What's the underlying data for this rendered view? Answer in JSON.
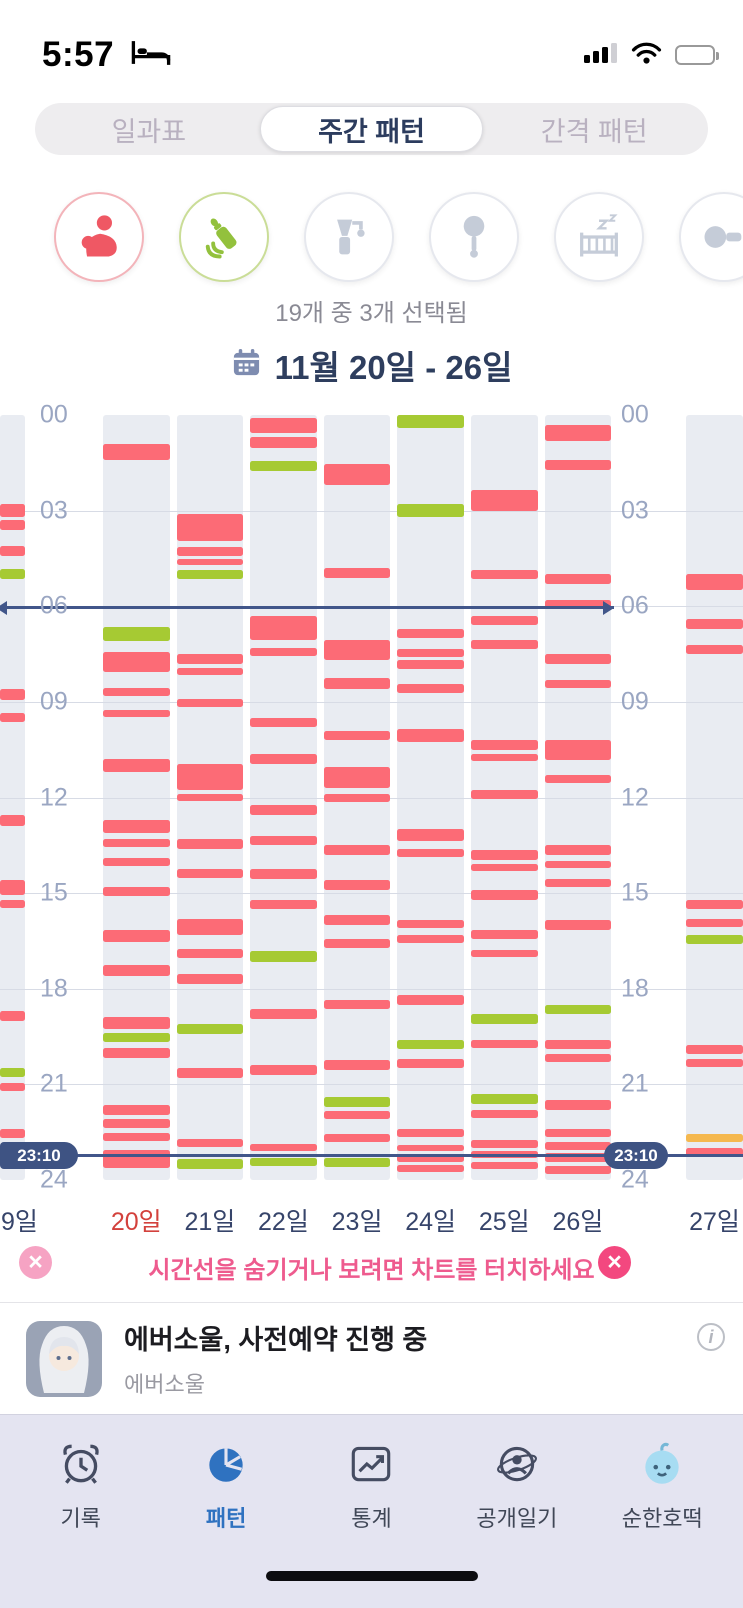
{
  "status_bar": {
    "time": "5:57"
  },
  "segmented_tabs": {
    "items": [
      {
        "label": "일과표",
        "selected": false
      },
      {
        "label": "주간 패턴",
        "selected": true
      },
      {
        "label": "간격 패턴",
        "selected": false
      }
    ]
  },
  "activity_filter": {
    "selection_summary": "19개 중 3개 선택됨",
    "icons": [
      {
        "name": "breastfeeding",
        "selected": true,
        "color": "#ef5864",
        "ring": "#f3b4ba"
      },
      {
        "name": "bottle-feeding",
        "selected": true,
        "color": "#93c13d",
        "ring": "#cadd97"
      },
      {
        "name": "breast-pump",
        "selected": false,
        "color": "#c5ccd8",
        "ring": "#e6e8ee"
      },
      {
        "name": "rattle",
        "selected": false,
        "color": "#c5ccd8",
        "ring": "#e6e8ee"
      },
      {
        "name": "sleep-crib",
        "selected": false,
        "color": "#c5ccd8",
        "ring": "#e6e8ee"
      },
      {
        "name": "more",
        "selected": false,
        "color": "#c5ccd8",
        "ring": "#e6e8ee"
      }
    ]
  },
  "date_header": {
    "label": "11월 20일 - 26일"
  },
  "chart_data": {
    "type": "weekly-timeline",
    "y_axis": {
      "unit": "hour",
      "range": [
        0,
        24
      ],
      "ticks": [
        "00",
        "03",
        "06",
        "09",
        "12",
        "15",
        "18",
        "21",
        "24"
      ]
    },
    "colors": {
      "p": "#fc6b76",
      "g": "#a6ca33",
      "o": "#f5b84f"
    },
    "palette": {
      "column_bg": "#e9ecf2",
      "timeline": "#3e5383",
      "accent_red": "#d3413c",
      "label_navy": "#36446a",
      "hint_pink": "#ee5b8e",
      "nav_selected": "#2f72c0"
    },
    "timelines": [
      {
        "hour": 6.0,
        "style": "arrows",
        "label": ""
      },
      {
        "hour": 23.17,
        "style": "labels",
        "label": "23:10"
      }
    ],
    "days": [
      {
        "label": "19일",
        "edge": "left",
        "highlight": false,
        "bars": [
          [
            2.8,
            3.2,
            "p"
          ],
          [
            3.3,
            3.62,
            "p"
          ],
          [
            4.1,
            4.42,
            "p"
          ],
          [
            4.82,
            5.15,
            "g"
          ],
          [
            8.6,
            8.95,
            "p"
          ],
          [
            9.35,
            9.62,
            "p"
          ],
          [
            12.55,
            12.9,
            "p"
          ],
          [
            14.6,
            15.05,
            "p"
          ],
          [
            15.2,
            15.48,
            "p"
          ],
          [
            18.7,
            19.0,
            "p"
          ],
          [
            20.5,
            20.78,
            "g"
          ],
          [
            20.95,
            21.22,
            "p"
          ],
          [
            22.4,
            22.68,
            "p"
          ]
        ]
      },
      {
        "label": "20일",
        "highlight": true,
        "bars": [
          [
            0.9,
            1.42,
            "p"
          ],
          [
            6.65,
            7.1,
            "g"
          ],
          [
            7.45,
            8.05,
            "p"
          ],
          [
            8.55,
            8.82,
            "p"
          ],
          [
            9.25,
            9.48,
            "p"
          ],
          [
            10.8,
            11.2,
            "p"
          ],
          [
            12.7,
            13.1,
            "p"
          ],
          [
            13.3,
            13.55,
            "p"
          ],
          [
            13.9,
            14.16,
            "p"
          ],
          [
            14.8,
            15.1,
            "p"
          ],
          [
            16.15,
            16.52,
            "p"
          ],
          [
            17.25,
            17.6,
            "p"
          ],
          [
            18.9,
            19.25,
            "p"
          ],
          [
            19.38,
            19.66,
            "g"
          ],
          [
            19.85,
            20.16,
            "p"
          ],
          [
            21.65,
            21.95,
            "p"
          ],
          [
            22.1,
            22.36,
            "p"
          ],
          [
            22.52,
            22.78,
            "p"
          ],
          [
            23.05,
            23.62,
            "p"
          ]
        ]
      },
      {
        "label": "21일",
        "highlight": false,
        "bars": [
          [
            3.1,
            3.95,
            "p"
          ],
          [
            4.15,
            4.42,
            "p"
          ],
          [
            4.52,
            4.72,
            "p"
          ],
          [
            4.85,
            5.15,
            "g"
          ],
          [
            7.5,
            7.82,
            "p"
          ],
          [
            7.95,
            8.15,
            "p"
          ],
          [
            8.9,
            9.15,
            "p"
          ],
          [
            10.95,
            11.75,
            "p"
          ],
          [
            11.9,
            12.12,
            "p"
          ],
          [
            13.3,
            13.6,
            "p"
          ],
          [
            14.25,
            14.52,
            "p"
          ],
          [
            15.8,
            16.3,
            "p"
          ],
          [
            16.75,
            17.05,
            "p"
          ],
          [
            17.55,
            17.85,
            "p"
          ],
          [
            19.1,
            19.42,
            "g"
          ],
          [
            20.5,
            20.8,
            "p"
          ],
          [
            22.7,
            22.96,
            "p"
          ],
          [
            23.35,
            23.65,
            "g"
          ]
        ]
      },
      {
        "label": "22일",
        "highlight": false,
        "bars": [
          [
            0.1,
            0.56,
            "p"
          ],
          [
            0.7,
            1.02,
            "p"
          ],
          [
            1.45,
            1.76,
            "g"
          ],
          [
            6.3,
            7.05,
            "p"
          ],
          [
            7.3,
            7.56,
            "p"
          ],
          [
            9.5,
            9.8,
            "p"
          ],
          [
            10.65,
            10.95,
            "p"
          ],
          [
            12.25,
            12.56,
            "p"
          ],
          [
            13.2,
            13.5,
            "p"
          ],
          [
            14.25,
            14.56,
            "p"
          ],
          [
            15.2,
            15.5,
            "p"
          ],
          [
            16.8,
            17.16,
            "g"
          ],
          [
            18.65,
            18.95,
            "p"
          ],
          [
            20.4,
            20.7,
            "p"
          ],
          [
            22.88,
            23.1,
            "p"
          ],
          [
            23.3,
            23.56,
            "g"
          ]
        ]
      },
      {
        "label": "23일",
        "highlight": false,
        "bars": [
          [
            1.55,
            2.2,
            "p"
          ],
          [
            4.8,
            5.1,
            "p"
          ],
          [
            7.05,
            7.7,
            "p"
          ],
          [
            8.25,
            8.6,
            "p"
          ],
          [
            9.9,
            10.2,
            "p"
          ],
          [
            11.05,
            11.7,
            "p"
          ],
          [
            11.9,
            12.15,
            "p"
          ],
          [
            13.5,
            13.8,
            "p"
          ],
          [
            14.6,
            14.9,
            "p"
          ],
          [
            15.7,
            16.0,
            "p"
          ],
          [
            16.45,
            16.72,
            "p"
          ],
          [
            18.35,
            18.65,
            "p"
          ],
          [
            20.25,
            20.55,
            "p"
          ],
          [
            21.4,
            21.72,
            "g"
          ],
          [
            21.85,
            22.1,
            "p"
          ],
          [
            22.55,
            22.8,
            "p"
          ],
          [
            23.3,
            23.6,
            "g"
          ]
        ]
      },
      {
        "label": "24일",
        "highlight": false,
        "bars": [
          [
            0.0,
            0.42,
            "g"
          ],
          [
            2.8,
            3.2,
            "g"
          ],
          [
            6.7,
            7.0,
            "p"
          ],
          [
            7.35,
            7.6,
            "p"
          ],
          [
            7.7,
            7.96,
            "p"
          ],
          [
            8.45,
            8.72,
            "p"
          ],
          [
            9.85,
            10.25,
            "p"
          ],
          [
            13.0,
            13.36,
            "p"
          ],
          [
            13.6,
            13.86,
            "p"
          ],
          [
            15.85,
            16.1,
            "p"
          ],
          [
            16.3,
            16.56,
            "p"
          ],
          [
            18.2,
            18.5,
            "p"
          ],
          [
            19.6,
            19.9,
            "g"
          ],
          [
            20.2,
            20.5,
            "p"
          ],
          [
            22.4,
            22.66,
            "p"
          ],
          [
            22.9,
            23.1,
            "p"
          ],
          [
            23.2,
            23.42,
            "p"
          ],
          [
            23.52,
            23.76,
            "p"
          ]
        ]
      },
      {
        "label": "25일",
        "highlight": false,
        "bars": [
          [
            2.35,
            3.0,
            "p"
          ],
          [
            4.85,
            5.15,
            "p"
          ],
          [
            6.3,
            6.6,
            "p"
          ],
          [
            7.05,
            7.35,
            "p"
          ],
          [
            10.2,
            10.5,
            "p"
          ],
          [
            10.65,
            10.86,
            "p"
          ],
          [
            11.75,
            12.05,
            "p"
          ],
          [
            13.65,
            13.95,
            "p"
          ],
          [
            14.1,
            14.32,
            "p"
          ],
          [
            14.9,
            15.2,
            "p"
          ],
          [
            16.15,
            16.45,
            "p"
          ],
          [
            16.78,
            17.0,
            "p"
          ],
          [
            18.8,
            19.1,
            "g"
          ],
          [
            19.6,
            19.86,
            "p"
          ],
          [
            21.3,
            21.6,
            "g"
          ],
          [
            21.8,
            22.06,
            "p"
          ],
          [
            22.75,
            23.0,
            "p"
          ],
          [
            23.1,
            23.32,
            "p"
          ],
          [
            23.42,
            23.66,
            "p"
          ]
        ]
      },
      {
        "label": "26일",
        "highlight": false,
        "bars": [
          [
            0.3,
            0.82,
            "p"
          ],
          [
            1.4,
            1.72,
            "p"
          ],
          [
            5.0,
            5.3,
            "p"
          ],
          [
            5.8,
            6.1,
            "p"
          ],
          [
            7.5,
            7.8,
            "p"
          ],
          [
            8.3,
            8.56,
            "p"
          ],
          [
            10.2,
            10.82,
            "p"
          ],
          [
            11.3,
            11.56,
            "p"
          ],
          [
            13.5,
            13.8,
            "p"
          ],
          [
            14.0,
            14.22,
            "p"
          ],
          [
            14.55,
            14.8,
            "p"
          ],
          [
            15.85,
            16.16,
            "p"
          ],
          [
            18.5,
            18.8,
            "g"
          ],
          [
            19.6,
            19.9,
            "p"
          ],
          [
            20.05,
            20.3,
            "p"
          ],
          [
            21.5,
            21.8,
            "p"
          ],
          [
            22.4,
            22.66,
            "p"
          ],
          [
            22.8,
            23.05,
            "p"
          ],
          [
            23.15,
            23.45,
            "p"
          ],
          [
            23.55,
            23.8,
            "p"
          ]
        ]
      },
      {
        "label": "27일",
        "edge": "right",
        "highlight": false,
        "bars": [
          [
            5.0,
            5.5,
            "p"
          ],
          [
            6.4,
            6.7,
            "p"
          ],
          [
            7.2,
            7.5,
            "p"
          ],
          [
            15.2,
            15.5,
            "p"
          ],
          [
            15.8,
            16.06,
            "p"
          ],
          [
            16.3,
            16.6,
            "g"
          ],
          [
            19.75,
            20.05,
            "p"
          ],
          [
            20.2,
            20.46,
            "p"
          ],
          [
            22.55,
            22.8,
            "o"
          ],
          [
            23.0,
            23.26,
            "p"
          ]
        ]
      }
    ]
  },
  "hint": {
    "text": "시간선을 숨기거나 보려면 차트를 터치하세요"
  },
  "ad": {
    "title": "에버소울, 사전예약 진행 중",
    "subtitle": "에버소울"
  },
  "bottom_nav": {
    "items": [
      {
        "label": "기록",
        "selected": false
      },
      {
        "label": "패턴",
        "selected": true
      },
      {
        "label": "통계",
        "selected": false
      },
      {
        "label": "공개일기",
        "selected": false
      },
      {
        "label": "순한호떡",
        "selected": false
      }
    ]
  }
}
